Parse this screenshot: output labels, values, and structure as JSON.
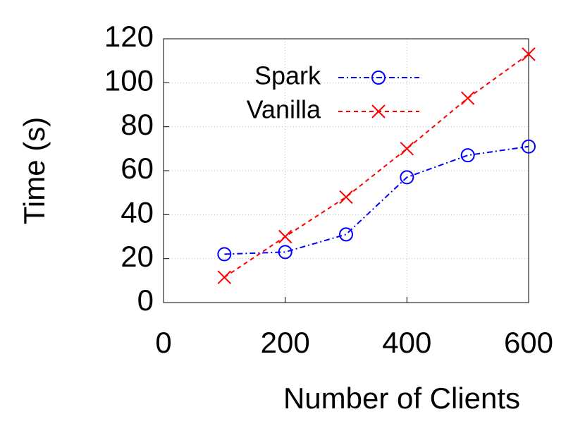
{
  "chart_data": {
    "type": "line",
    "x_label": "Number of Clients",
    "y_label": "Time (s)",
    "x": [
      100,
      200,
      300,
      400,
      500,
      600
    ],
    "series": [
      {
        "name": "Spark",
        "color": "#0000ff",
        "marker": "circle",
        "dash": "dashdot",
        "values": [
          22,
          23,
          31,
          57,
          67,
          71
        ]
      },
      {
        "name": "Vanilla",
        "color": "#ff0000",
        "marker": "x",
        "dash": "dashed",
        "values": [
          11.5,
          30,
          48,
          70,
          93,
          113
        ]
      }
    ],
    "xlim": [
      0,
      600
    ],
    "xticks": [
      0,
      200,
      400,
      600
    ],
    "ylim": [
      0,
      120
    ],
    "yticks": [
      0,
      20,
      40,
      60,
      80,
      100,
      120
    ],
    "grid": true,
    "legend": "top-center"
  }
}
